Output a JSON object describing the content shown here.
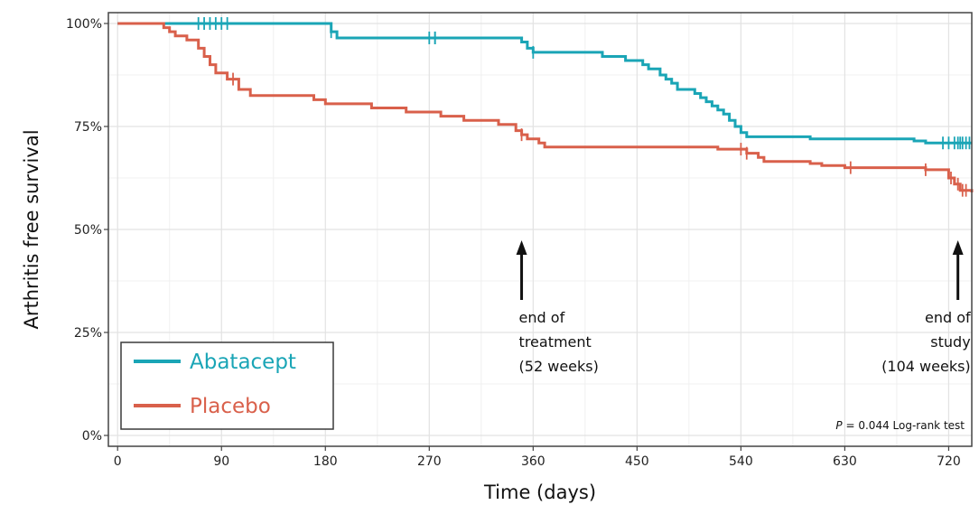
{
  "chart_data": {
    "type": "line",
    "title": "",
    "xlabel": "Time (days)",
    "ylabel": "Arthritis free survival",
    "xlim": [
      -8,
      740
    ],
    "ylim": [
      0,
      1
    ],
    "x_ticks": [
      0,
      90,
      180,
      270,
      360,
      450,
      540,
      630,
      720
    ],
    "x_tick_labels": [
      "0",
      "90",
      "180",
      "270",
      "360",
      "450",
      "540",
      "630",
      "720"
    ],
    "y_ticks": [
      0,
      0.25,
      0.5,
      0.75,
      1.0
    ],
    "y_tick_labels": [
      "0%",
      "25%",
      "50%",
      "75%",
      "100%"
    ],
    "grid": true,
    "legend_position": "bottom-left",
    "series": [
      {
        "name": "Abatacept",
        "color": "#1aa5b6",
        "steps": [
          [
            0,
            1.0
          ],
          [
            185,
            0.98
          ],
          [
            190,
            0.965
          ],
          [
            350,
            0.955
          ],
          [
            355,
            0.94
          ],
          [
            360,
            0.93
          ],
          [
            420,
            0.92
          ],
          [
            440,
            0.91
          ],
          [
            455,
            0.9
          ],
          [
            460,
            0.89
          ],
          [
            470,
            0.875
          ],
          [
            475,
            0.865
          ],
          [
            480,
            0.855
          ],
          [
            485,
            0.84
          ],
          [
            500,
            0.83
          ],
          [
            505,
            0.82
          ],
          [
            510,
            0.81
          ],
          [
            515,
            0.8
          ],
          [
            520,
            0.79
          ],
          [
            525,
            0.78
          ],
          [
            530,
            0.765
          ],
          [
            535,
            0.75
          ],
          [
            540,
            0.735
          ],
          [
            545,
            0.725
          ],
          [
            600,
            0.72
          ],
          [
            690,
            0.715
          ],
          [
            700,
            0.71
          ],
          [
            740,
            0.71
          ]
        ],
        "censor_x": [
          70,
          75,
          80,
          85,
          90,
          95,
          185,
          270,
          275,
          275,
          360,
          715,
          720,
          725,
          728,
          730,
          732,
          735,
          738
        ]
      },
      {
        "name": "Placebo",
        "color": "#d9604b",
        "steps": [
          [
            0,
            1.0
          ],
          [
            40,
            0.99
          ],
          [
            45,
            0.98
          ],
          [
            50,
            0.97
          ],
          [
            60,
            0.96
          ],
          [
            70,
            0.94
          ],
          [
            75,
            0.92
          ],
          [
            80,
            0.9
          ],
          [
            85,
            0.88
          ],
          [
            95,
            0.865
          ],
          [
            105,
            0.84
          ],
          [
            115,
            0.825
          ],
          [
            170,
            0.815
          ],
          [
            180,
            0.805
          ],
          [
            220,
            0.795
          ],
          [
            250,
            0.785
          ],
          [
            280,
            0.775
          ],
          [
            300,
            0.765
          ],
          [
            330,
            0.755
          ],
          [
            345,
            0.74
          ],
          [
            350,
            0.73
          ],
          [
            355,
            0.72
          ],
          [
            365,
            0.71
          ],
          [
            370,
            0.7
          ],
          [
            520,
            0.695
          ],
          [
            545,
            0.685
          ],
          [
            555,
            0.675
          ],
          [
            560,
            0.665
          ],
          [
            600,
            0.66
          ],
          [
            610,
            0.655
          ],
          [
            630,
            0.65
          ],
          [
            700,
            0.645
          ],
          [
            720,
            0.625
          ],
          [
            725,
            0.61
          ],
          [
            730,
            0.595
          ],
          [
            740,
            0.59
          ]
        ],
        "censor_x": [
          100,
          350,
          540,
          545,
          635,
          700,
          722,
          728,
          732,
          735
        ]
      }
    ],
    "annotations": [
      {
        "x": 350,
        "lines": [
          "end of",
          "treatment",
          "(52 weeks)"
        ],
        "align": "start",
        "arrow": true
      },
      {
        "x": 728,
        "lines": [
          "end of",
          "study",
          "(104 weeks)"
        ],
        "align": "end",
        "arrow": true
      }
    ],
    "ptest": {
      "p_label": "P",
      "text": " = 0.044 Log-rank test"
    }
  }
}
